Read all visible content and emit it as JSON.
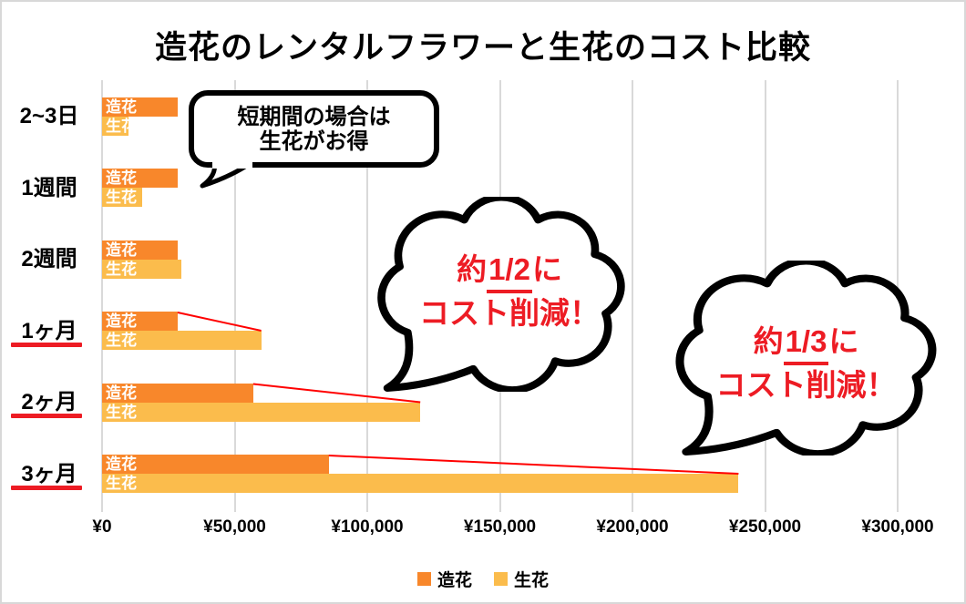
{
  "header": {
    "title": "造花のレンタルフラワーと生花のコスト比較"
  },
  "chart_data": {
    "type": "bar",
    "orientation": "horizontal",
    "title": "造花のレンタルフラワーと生花のコスト比較",
    "categories": [
      "2~3日",
      "1週間",
      "2週間",
      "1ヶ月",
      "2ヶ月",
      "3ヶ月"
    ],
    "series": [
      {
        "name": "造花",
        "color": "#F8872B",
        "values": [
          28500,
          28500,
          28500,
          28500,
          57000,
          85500
        ]
      },
      {
        "name": "生花",
        "color": "#FBBC4C",
        "values": [
          10000,
          15000,
          30000,
          60000,
          120000,
          240000
        ]
      }
    ],
    "xlim": [
      0,
      300000
    ],
    "xticks": [
      0,
      50000,
      100000,
      150000,
      200000,
      250000,
      300000
    ],
    "xtick_labels": [
      "¥0",
      "¥50,000",
      "¥100,000",
      "¥150,000",
      "¥200,000",
      "¥250,000",
      "¥300,000"
    ],
    "grid": true,
    "legend_position": "bottom",
    "highlighted_rows": [
      3,
      4,
      5
    ],
    "connector_rows": [
      3,
      4,
      5
    ]
  },
  "annotations": {
    "short_term_bubble": {
      "line1": "短期間の場合は",
      "line2": "生花がお得"
    },
    "half_cloud": {
      "pre": "約",
      "fraction": "1/2",
      "post": "に",
      "line2": "コスト削減！"
    },
    "third_cloud": {
      "pre": "約",
      "fraction": "1/3",
      "post": "に",
      "line2": "コスト削減！"
    }
  },
  "colors": {
    "series_zouka": "#F8872B",
    "series_seika": "#FBBC4C",
    "annotation_red": "#ED1C24",
    "connector_red": "#FF0000",
    "gridline": "#D9D9D9",
    "bar_label": "#FFFFFF"
  }
}
